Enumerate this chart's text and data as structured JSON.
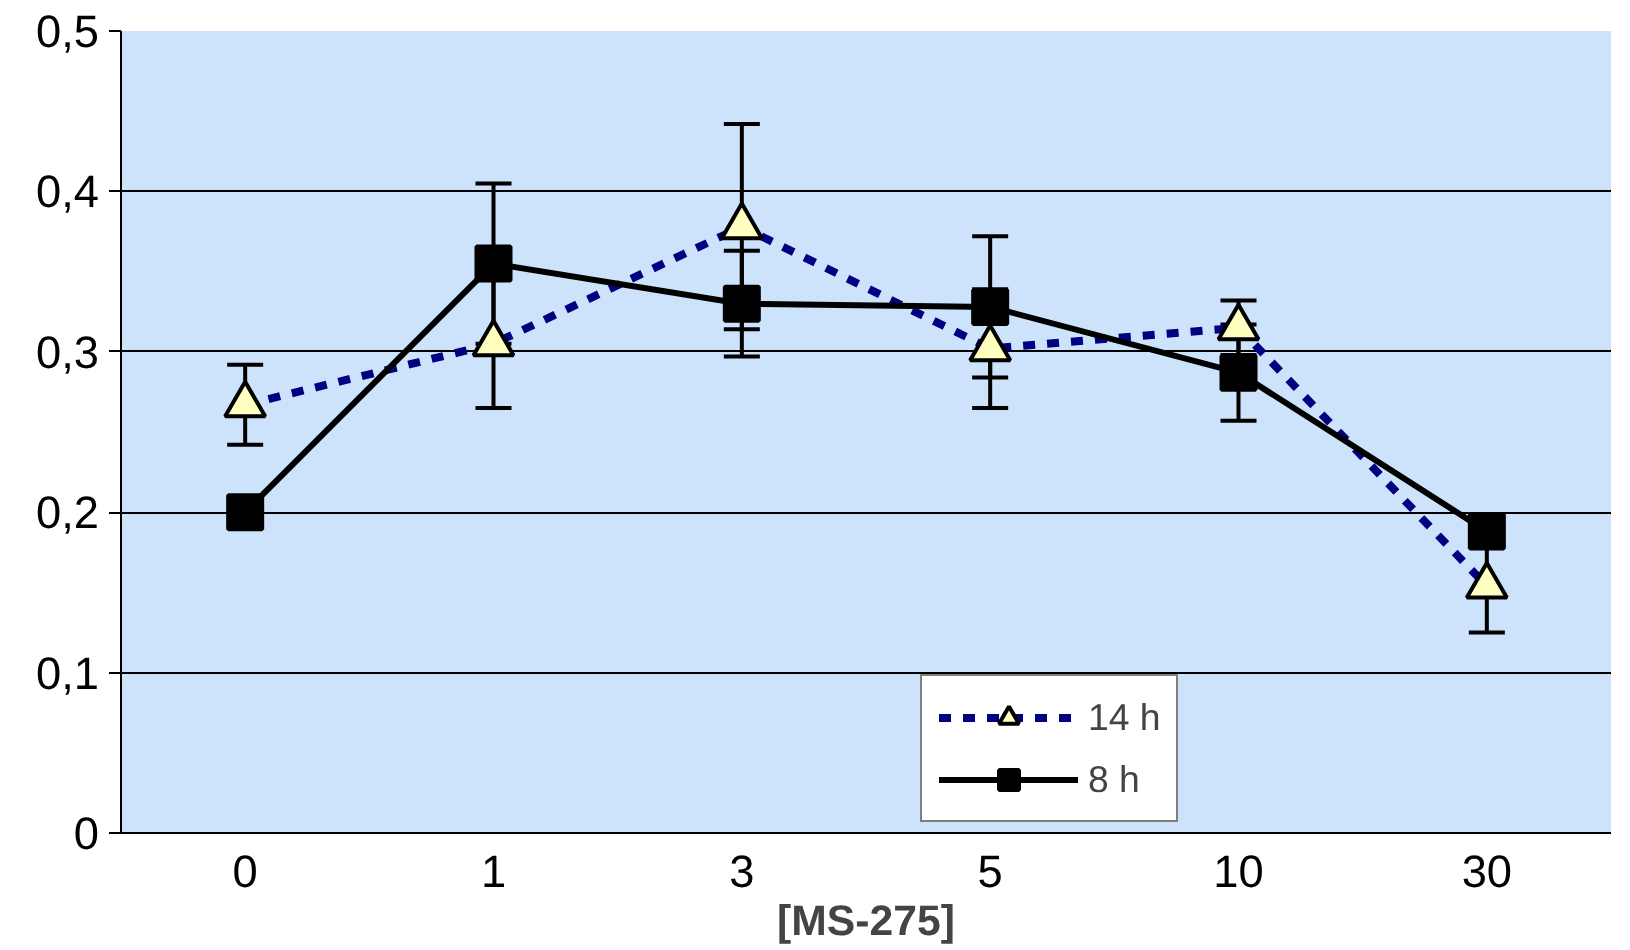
{
  "chart_data": {
    "type": "line",
    "xlabel": "[MS-275]",
    "categories": [
      "0",
      "1",
      "3",
      "5",
      "10",
      "30"
    ],
    "ylim": [
      0,
      0.5
    ],
    "yticks": [
      {
        "value": 0,
        "label": "0"
      },
      {
        "value": 0.1,
        "label": "0,1"
      },
      {
        "value": 0.2,
        "label": "0,2"
      },
      {
        "value": 0.3,
        "label": "0,3"
      },
      {
        "value": 0.4,
        "label": "0,4"
      },
      {
        "value": 0.5,
        "label": "0,5"
      }
    ],
    "grid": "y",
    "legend": "bottom right",
    "series": [
      {
        "name": "14 h",
        "color": "#000080",
        "marker": "triangle",
        "line_style": "dashed",
        "values": [
          0.267,
          0.305,
          0.378,
          0.302,
          0.315,
          0.154
        ],
        "errors": [
          0.025,
          0.04,
          0.064,
          0.037,
          0.017,
          0.029
        ]
      },
      {
        "name": "8 h",
        "color": "#000000",
        "marker": "square",
        "line_style": "solid",
        "values": [
          0.2,
          0.355,
          0.33,
          0.328,
          0.287,
          0.188
        ],
        "errors": [
          null,
          0.05,
          0.033,
          0.044,
          0.03,
          null
        ]
      }
    ]
  }
}
